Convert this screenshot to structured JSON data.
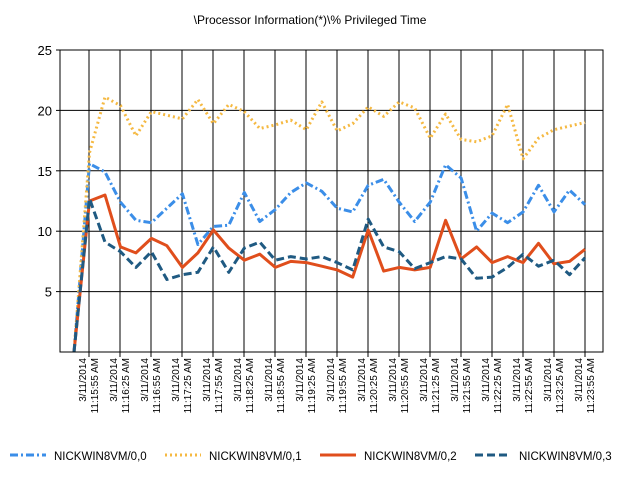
{
  "chart_data": {
    "type": "line",
    "title": "\\Processor Information(*)\\% Privileged Time",
    "xlabel": "",
    "ylabel": "",
    "ylim": [
      0,
      25
    ],
    "yticks": [
      5,
      10,
      15,
      20,
      25
    ],
    "grid": true,
    "legend_position": "bottom",
    "x_tick_labels": [
      [
        "3/11/2014",
        "11:15:55 AM"
      ],
      [
        "3/11/2014",
        "11:16:25 AM"
      ],
      [
        "3/11/2014",
        "11:16:55 AM"
      ],
      [
        "3/11/2014",
        "11:17:25 AM"
      ],
      [
        "3/11/2014",
        "11:17:55 AM"
      ],
      [
        "3/11/2014",
        "11:18:25 AM"
      ],
      [
        "3/11/2014",
        "11:18:55 AM"
      ],
      [
        "3/11/2014",
        "11:19:25 AM"
      ],
      [
        "3/11/2014",
        "11:19:55 AM"
      ],
      [
        "3/11/2014",
        "11:20:25 AM"
      ],
      [
        "3/11/2014",
        "11:20:55 AM"
      ],
      [
        "3/11/2014",
        "11:21:25 AM"
      ],
      [
        "3/11/2014",
        "11:21:55 AM"
      ],
      [
        "3/11/2014",
        "11:22:25 AM"
      ],
      [
        "3/11/2014",
        "11:22:55 AM"
      ],
      [
        "3/11/2014",
        "11:23:25 AM"
      ],
      [
        "3/11/2014",
        "11:23:55 AM"
      ]
    ],
    "series": [
      {
        "name": "NICKWIN8VM/0,0",
        "color": "#3b8ee8",
        "dash": "dashdot",
        "values": [
          0,
          15.6,
          14.9,
          12.4,
          10.9,
          10.7,
          11.9,
          13.1,
          8.9,
          10.4,
          10.5,
          13.2,
          10.8,
          11.8,
          13.2,
          14.0,
          13.3,
          11.9,
          11.6,
          13.8,
          14.3,
          12.4,
          10.8,
          12.4,
          15.5,
          14.4,
          10.0,
          11.5,
          10.7,
          11.6,
          13.8,
          11.6,
          13.4,
          12.2
        ]
      },
      {
        "name": "NICKWIN8VM/0,1",
        "color": "#f5b942",
        "dash": "dotted",
        "values": [
          0,
          16.5,
          21.1,
          20.4,
          17.9,
          19.9,
          19.6,
          19.3,
          20.9,
          18.9,
          20.5,
          19.9,
          18.5,
          18.8,
          19.2,
          18.4,
          20.7,
          18.3,
          18.9,
          20.3,
          19.5,
          20.7,
          20.2,
          17.7,
          19.7,
          17.6,
          17.4,
          17.9,
          20.5,
          16.0,
          17.7,
          18.4,
          18.7,
          19.0
        ]
      },
      {
        "name": "NICKWIN8VM/0,2",
        "color": "#e04e1c",
        "dash": "solid",
        "values": [
          0,
          12.5,
          13.0,
          8.7,
          8.2,
          9.4,
          8.8,
          7.0,
          8.2,
          10.1,
          8.6,
          7.6,
          8.1,
          7.0,
          7.5,
          7.4,
          7.1,
          6.8,
          6.2,
          10.1,
          6.7,
          7.0,
          6.8,
          7.0,
          10.9,
          7.7,
          8.7,
          7.4,
          7.9,
          7.4,
          9.0,
          7.3,
          7.5,
          8.5
        ]
      },
      {
        "name": "NICKWIN8VM/0,3",
        "color": "#1f5a82",
        "dash": "dashed",
        "values": [
          0,
          12.7,
          9.1,
          8.3,
          7.0,
          8.3,
          6.0,
          6.4,
          6.6,
          8.7,
          6.6,
          8.6,
          9.1,
          7.6,
          7.9,
          7.7,
          7.9,
          7.4,
          6.8,
          11.0,
          8.7,
          8.3,
          6.9,
          7.4,
          7.9,
          7.7,
          6.1,
          6.2,
          7.0,
          8.1,
          7.1,
          7.6,
          6.4,
          7.8
        ]
      }
    ]
  }
}
